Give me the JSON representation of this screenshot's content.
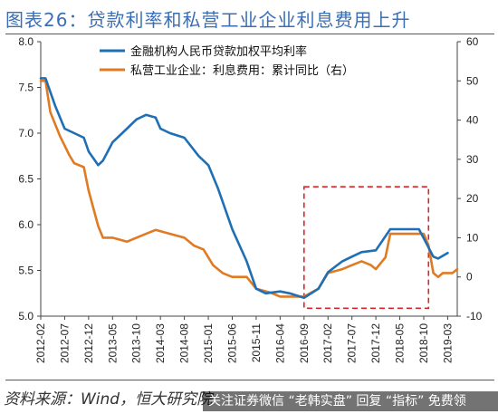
{
  "title": "图表26：贷款利率和私营工业企业利息费用上升",
  "source": "资料来源：Wind，恒大研究院",
  "watermark": "关注证券微信 “老韩实盘” 回复 “指标” 免费领",
  "colors": {
    "blue": "#1f6fb4",
    "orange": "#e07a23",
    "dashed_box": "#d9262a",
    "title": "#3a6fb5"
  },
  "chart_data": {
    "type": "line",
    "title": "图表26：贷款利率和私营工业企业利息费用上升",
    "x_tick_labels": [
      "2012-02",
      "2012-07",
      "2012-12",
      "2013-05",
      "2013-10",
      "2014-03",
      "2014-08",
      "2015-01",
      "2015-06",
      "2015-11",
      "2016-04",
      "2016-09",
      "2017-02",
      "2017-07",
      "2017-12",
      "2018-05",
      "2018-10",
      "2019-03"
    ],
    "y_left": {
      "ticks": [
        "8.0",
        "7.5",
        "7.0",
        "6.5",
        "6.0",
        "5.5",
        "5.0"
      ],
      "range": [
        5.0,
        8.0
      ]
    },
    "y_right": {
      "ticks": [
        "60",
        "50",
        "40",
        "30",
        "20",
        "10",
        "0",
        "-10"
      ],
      "range": [
        -10,
        60
      ]
    },
    "series": [
      {
        "name": "金融机构人民币贷款加权平均利率",
        "axis": "left",
        "color": "#1f6fb4",
        "points": [
          [
            "2012-02",
            7.6
          ],
          [
            "2012-03",
            7.6
          ],
          [
            "2012-05",
            7.3
          ],
          [
            "2012-07",
            7.05
          ],
          [
            "2012-09",
            7.0
          ],
          [
            "2012-11",
            6.95
          ],
          [
            "2012-12",
            6.8
          ],
          [
            "2013-02",
            6.65
          ],
          [
            "2013-03",
            6.7
          ],
          [
            "2013-05",
            6.9
          ],
          [
            "2013-08",
            7.05
          ],
          [
            "2013-10",
            7.15
          ],
          [
            "2013-12",
            7.2
          ],
          [
            "2014-02",
            7.17
          ],
          [
            "2014-03",
            7.05
          ],
          [
            "2014-05",
            7.0
          ],
          [
            "2014-08",
            6.95
          ],
          [
            "2014-11",
            6.75
          ],
          [
            "2015-01",
            6.65
          ],
          [
            "2015-03",
            6.4
          ],
          [
            "2015-06",
            5.95
          ],
          [
            "2015-09",
            5.6
          ],
          [
            "2015-11",
            5.3
          ],
          [
            "2016-01",
            5.25
          ],
          [
            "2016-04",
            5.27
          ],
          [
            "2016-06",
            5.25
          ],
          [
            "2016-09",
            5.2
          ],
          [
            "2016-12",
            5.3
          ],
          [
            "2017-02",
            5.48
          ],
          [
            "2017-05",
            5.6
          ],
          [
            "2017-07",
            5.65
          ],
          [
            "2017-09",
            5.7
          ],
          [
            "2017-12",
            5.72
          ],
          [
            "2018-03",
            5.95
          ],
          [
            "2018-06",
            5.95
          ],
          [
            "2018-09",
            5.95
          ],
          [
            "2018-12",
            5.65
          ],
          [
            "2019-01",
            5.63
          ],
          [
            "2019-03",
            5.69
          ]
        ]
      },
      {
        "name": "私营工业企业：利息费用：累计同比（右）",
        "axis": "right",
        "color": "#e07a23",
        "points": [
          [
            "2012-02",
            50
          ],
          [
            "2012-03",
            50
          ],
          [
            "2012-04",
            42
          ],
          [
            "2012-06",
            36
          ],
          [
            "2012-08",
            31
          ],
          [
            "2012-09",
            29
          ],
          [
            "2012-11",
            28
          ],
          [
            "2012-12",
            22
          ],
          [
            "2013-02",
            13
          ],
          [
            "2013-03",
            10
          ],
          [
            "2013-05",
            10
          ],
          [
            "2013-08",
            9
          ],
          [
            "2013-10",
            10
          ],
          [
            "2013-12",
            11
          ],
          [
            "2014-02",
            12
          ],
          [
            "2014-05",
            11
          ],
          [
            "2014-08",
            10
          ],
          [
            "2014-10",
            8
          ],
          [
            "2014-12",
            7
          ],
          [
            "2015-02",
            3
          ],
          [
            "2015-04",
            1
          ],
          [
            "2015-06",
            0
          ],
          [
            "2015-09",
            0
          ],
          [
            "2015-11",
            -3
          ],
          [
            "2016-02",
            -4
          ],
          [
            "2016-04",
            -5
          ],
          [
            "2016-06",
            -5
          ],
          [
            "2016-09",
            -5
          ],
          [
            "2016-12",
            -3
          ],
          [
            "2017-02",
            1
          ],
          [
            "2017-05",
            2
          ],
          [
            "2017-07",
            3
          ],
          [
            "2017-09",
            4
          ],
          [
            "2017-11",
            3
          ],
          [
            "2017-12",
            2
          ],
          [
            "2018-02",
            5
          ],
          [
            "2018-03",
            11
          ],
          [
            "2018-05",
            11
          ],
          [
            "2018-08",
            11
          ],
          [
            "2018-10",
            11
          ],
          [
            "2018-11",
            8
          ],
          [
            "2018-12",
            1
          ],
          [
            "2019-01",
            0
          ],
          [
            "2019-02",
            1
          ],
          [
            "2019-04",
            1
          ],
          [
            "2019-05",
            2
          ]
        ]
      }
    ],
    "annotation": {
      "type": "dashed-rectangle",
      "x_from": "2016-09",
      "x_to": "2018-11",
      "y_right_from": -8,
      "y_right_to": 23
    },
    "legend_position": "top-left"
  }
}
